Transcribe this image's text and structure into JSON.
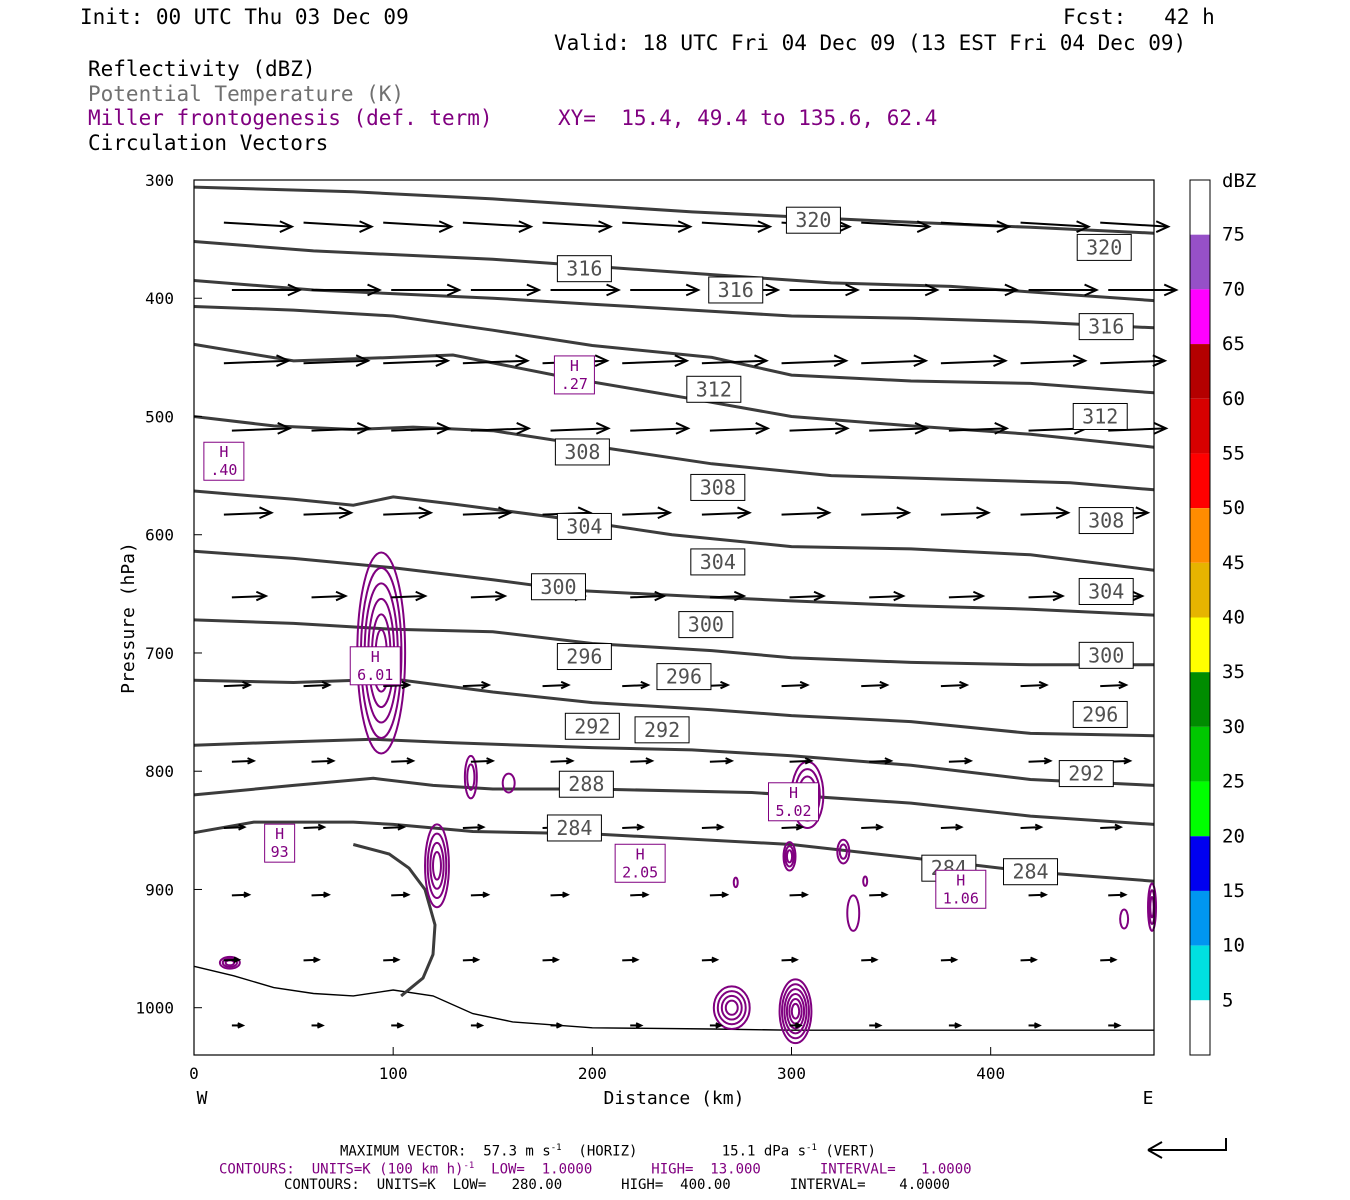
{
  "header": {
    "init": "Init: 00 UTC Thu 03 Dec 09",
    "fcst": "Fcst:   42 h",
    "valid": "Valid: 18 UTC Fri 04 Dec 09 (13 EST Fri 04 Dec 09)",
    "field1": "Reflectivity (dBZ)",
    "field2": "Potential Temperature (K)",
    "field3": "Miller frontogenesis (def. term)",
    "xy": "XY=  15.4, 49.4 to 135.6, 62.4",
    "field4": "Circulation Vectors"
  },
  "footer": {
    "max_vector_prefix": "MAXIMUM VECTOR:  57.3 m s",
    "max_vector_horiz": "(HORIZ)",
    "max_vector_vert": "15.1 dPa s",
    "max_vector_vert_suffix": "(VERT)",
    "exp": "-1",
    "contours_front_prefix": "CONTOURS:  UNITS=K (100 km h)",
    "contours_front_suffix": "LOW=  1.0000       HIGH=  13.000       INTERVAL=   1.0000",
    "contours_theta": "CONTOURS:  UNITS=K  LOW=   280.00       HIGH=  400.00       INTERVAL=    4.0000"
  },
  "colors": {
    "theta": "#3c3c3c",
    "front": "#800080",
    "vector": "#000000"
  },
  "chart_data": {
    "type": "contour-cross-section",
    "xlabel": "Distance (km)",
    "ylabel": "Pressure (hPa)",
    "xlim": [
      0,
      482
    ],
    "ylim": [
      1040,
      300
    ],
    "x_ticks": [
      0,
      100,
      200,
      300,
      400
    ],
    "y_ticks": [
      300,
      400,
      500,
      600,
      700,
      800,
      900,
      1000
    ],
    "left_end": "W",
    "right_end": "E",
    "theta_series": [
      {
        "level": 284,
        "pts": [
          [
            0,
            852
          ],
          [
            30,
            843
          ],
          [
            80,
            843
          ],
          [
            100,
            845
          ],
          [
            140,
            851
          ],
          [
            200,
            853
          ],
          [
            300,
            862
          ],
          [
            380,
            877
          ],
          [
            420,
            885
          ],
          [
            482,
            893
          ]
        ]
      },
      {
        "level": 288,
        "pts": [
          [
            0,
            820
          ],
          [
            50,
            812
          ],
          [
            90,
            806
          ],
          [
            120,
            812
          ],
          [
            150,
            815
          ],
          [
            200,
            815
          ],
          [
            280,
            818
          ],
          [
            360,
            827
          ],
          [
            420,
            838
          ],
          [
            482,
            845
          ]
        ]
      },
      {
        "level": 292,
        "pts": [
          [
            0,
            778
          ],
          [
            50,
            775
          ],
          [
            90,
            773
          ],
          [
            130,
            776
          ],
          [
            200,
            780
          ],
          [
            250,
            782
          ],
          [
            300,
            787
          ],
          [
            360,
            795
          ],
          [
            420,
            807
          ],
          [
            482,
            812
          ]
        ]
      },
      {
        "level": 296,
        "pts": [
          [
            0,
            723
          ],
          [
            50,
            725
          ],
          [
            100,
            722
          ],
          [
            150,
            733
          ],
          [
            200,
            742
          ],
          [
            260,
            748
          ],
          [
            300,
            753
          ],
          [
            360,
            758
          ],
          [
            420,
            768
          ],
          [
            482,
            770
          ]
        ]
      },
      {
        "level": 300,
        "pts": [
          [
            0,
            672
          ],
          [
            50,
            675
          ],
          [
            100,
            680
          ],
          [
            150,
            682
          ],
          [
            200,
            692
          ],
          [
            260,
            698
          ],
          [
            300,
            704
          ],
          [
            360,
            708
          ],
          [
            420,
            710
          ],
          [
            482,
            710
          ]
        ]
      },
      {
        "level": 304,
        "pts": [
          [
            0,
            614
          ],
          [
            50,
            620
          ],
          [
            100,
            628
          ],
          [
            150,
            638
          ],
          [
            190,
            647
          ],
          [
            250,
            652
          ],
          [
            300,
            656
          ],
          [
            360,
            660
          ],
          [
            420,
            663
          ],
          [
            482,
            668
          ]
        ]
      },
      {
        "level": 308,
        "pts": [
          [
            0,
            563
          ],
          [
            50,
            570
          ],
          [
            80,
            575
          ],
          [
            100,
            568
          ],
          [
            130,
            574
          ],
          [
            180,
            585
          ],
          [
            240,
            600
          ],
          [
            300,
            610
          ],
          [
            360,
            612
          ],
          [
            420,
            617
          ],
          [
            482,
            630
          ]
        ]
      },
      {
        "level": 312,
        "pts": [
          [
            0,
            500
          ],
          [
            40,
            508
          ],
          [
            80,
            511
          ],
          [
            110,
            509
          ],
          [
            150,
            512
          ],
          [
            200,
            525
          ],
          [
            260,
            540
          ],
          [
            320,
            550
          ],
          [
            380,
            553
          ],
          [
            440,
            556
          ],
          [
            482,
            562
          ]
        ]
      },
      {
        "level": 316,
        "pts": [
          [
            0,
            439
          ],
          [
            50,
            453
          ],
          [
            100,
            450
          ],
          [
            130,
            448
          ],
          [
            190,
            468
          ],
          [
            250,
            485
          ],
          [
            300,
            500
          ],
          [
            360,
            508
          ],
          [
            420,
            515
          ],
          [
            482,
            526
          ]
        ]
      },
      {
        "level": 320,
        "pts": [
          [
            0,
            407
          ],
          [
            50,
            410
          ],
          [
            100,
            415
          ],
          [
            150,
            427
          ],
          [
            200,
            440
          ],
          [
            260,
            450
          ],
          [
            300,
            465
          ],
          [
            360,
            470
          ],
          [
            420,
            472
          ],
          [
            482,
            480
          ]
        ]
      },
      {
        "level": 316,
        "pts": [
          [
            0,
            385
          ],
          [
            60,
            393
          ],
          [
            150,
            400
          ],
          [
            200,
            405
          ],
          [
            250,
            410
          ],
          [
            300,
            415
          ],
          [
            360,
            417
          ],
          [
            420,
            420
          ],
          [
            482,
            425
          ]
        ]
      },
      {
        "level": 320,
        "pts": [
          [
            0,
            352
          ],
          [
            60,
            360
          ],
          [
            150,
            367
          ],
          [
            200,
            373
          ],
          [
            260,
            380
          ],
          [
            320,
            387
          ],
          [
            380,
            390
          ],
          [
            440,
            397
          ],
          [
            482,
            402
          ]
        ]
      },
      {
        "level": 320,
        "pts": [
          [
            0,
            306
          ],
          [
            80,
            310
          ],
          [
            150,
            316
          ],
          [
            250,
            327
          ],
          [
            350,
            335
          ],
          [
            420,
            340
          ],
          [
            482,
            345
          ]
        ]
      }
    ],
    "surface_line": [
      [
        0,
        965
      ],
      [
        20,
        973
      ],
      [
        40,
        983
      ],
      [
        60,
        988
      ],
      [
        80,
        990
      ],
      [
        100,
        985
      ],
      [
        120,
        990
      ],
      [
        140,
        1005
      ],
      [
        160,
        1012
      ],
      [
        200,
        1017
      ],
      [
        260,
        1018
      ],
      [
        300,
        1019
      ],
      [
        380,
        1019
      ],
      [
        482,
        1019
      ]
    ],
    "front_line": [
      [
        80,
        862
      ],
      [
        98,
        870
      ],
      [
        108,
        882
      ],
      [
        116,
        900
      ],
      [
        121,
        930
      ],
      [
        120,
        955
      ],
      [
        115,
        975
      ],
      [
        104,
        990
      ]
    ],
    "theta_labels": [
      {
        "text": "320",
        "x": 311,
        "p": 334
      },
      {
        "text": "320",
        "x": 457,
        "p": 357
      },
      {
        "text": "316",
        "x": 196,
        "p": 375
      },
      {
        "text": "316",
        "x": 272,
        "p": 393
      },
      {
        "text": "316",
        "x": 458,
        "p": 424
      },
      {
        "text": "312",
        "x": 261,
        "p": 477
      },
      {
        "text": "312",
        "x": 455,
        "p": 500
      },
      {
        "text": "308",
        "x": 195,
        "p": 530
      },
      {
        "text": "308",
        "x": 263,
        "p": 560
      },
      {
        "text": "308",
        "x": 458,
        "p": 588
      },
      {
        "text": "304",
        "x": 196,
        "p": 593
      },
      {
        "text": "304",
        "x": 263,
        "p": 623
      },
      {
        "text": "304",
        "x": 458,
        "p": 648
      },
      {
        "text": "300",
        "x": 183,
        "p": 644
      },
      {
        "text": "300",
        "x": 257,
        "p": 676
      },
      {
        "text": "300",
        "x": 458,
        "p": 702
      },
      {
        "text": "296",
        "x": 196,
        "p": 703
      },
      {
        "text": "296",
        "x": 246,
        "p": 720
      },
      {
        "text": "296",
        "x": 455,
        "p": 752
      },
      {
        "text": "292",
        "x": 200,
        "p": 762
      },
      {
        "text": "292",
        "x": 235,
        "p": 765
      },
      {
        "text": "292",
        "x": 448,
        "p": 802
      },
      {
        "text": "288",
        "x": 197,
        "p": 811
      },
      {
        "text": "284",
        "x": 191,
        "p": 848
      },
      {
        "text": "284",
        "x": 379,
        "p": 882
      },
      {
        "text": "284",
        "x": 420,
        "p": 885
      }
    ],
    "front_highs": [
      {
        "label": "H",
        "value": ".40",
        "x": 15,
        "p": 537
      },
      {
        "label": "H",
        "value": ".27",
        "x": 191,
        "p": 464
      },
      {
        "label": "H",
        "value": "6.01",
        "x": 91,
        "p": 710
      },
      {
        "label": "H",
        "value": "93",
        "x": 43,
        "p": 860
      },
      {
        "label": "H",
        "value": "2.05",
        "x": 224,
        "p": 877
      },
      {
        "label": "H",
        "value": "5.02",
        "x": 301,
        "p": 825
      },
      {
        "label": "H",
        "value": "1.06",
        "x": 385,
        "p": 899
      }
    ],
    "vector_rows": [
      {
        "p": 336,
        "u": 1.0,
        "w": -0.03
      },
      {
        "p": 393,
        "u": 1.0,
        "w": 0.0
      },
      {
        "p": 455,
        "u": 0.95,
        "w": 0.02
      },
      {
        "p": 512,
        "u": 0.85,
        "w": 0.02
      },
      {
        "p": 583,
        "u": 0.7,
        "w": 0.02
      },
      {
        "p": 653,
        "u": 0.5,
        "w": 0.02
      },
      {
        "p": 728,
        "u": 0.38,
        "w": 0.02
      },
      {
        "p": 792,
        "u": 0.32,
        "w": 0.02
      },
      {
        "p": 848,
        "u": 0.3,
        "w": 0.02
      },
      {
        "p": 905,
        "u": 0.25,
        "w": 0.02
      },
      {
        "p": 960,
        "u": 0.22,
        "w": 0.02
      },
      {
        "p": 1015,
        "u": 0.16,
        "w": 0.0
      }
    ],
    "vector_x": [
      15,
      55,
      95,
      135,
      175,
      215,
      255,
      295,
      335,
      375,
      415,
      455
    ],
    "colorbar": {
      "label": "dBZ",
      "ticks": [
        "5",
        "10",
        "15",
        "20",
        "25",
        "30",
        "35",
        "40",
        "45",
        "50",
        "55",
        "60",
        "65",
        "70",
        "75"
      ],
      "colors": [
        "#ffffff",
        "#00e0e0",
        "#0096f0",
        "#0000f0",
        "#00ff00",
        "#00c800",
        "#008c00",
        "#ffff00",
        "#e6b400",
        "#ff8c00",
        "#ff0000",
        "#d70000",
        "#b40000",
        "#ff00ff",
        "#9650c8",
        "#ffffff"
      ]
    }
  }
}
